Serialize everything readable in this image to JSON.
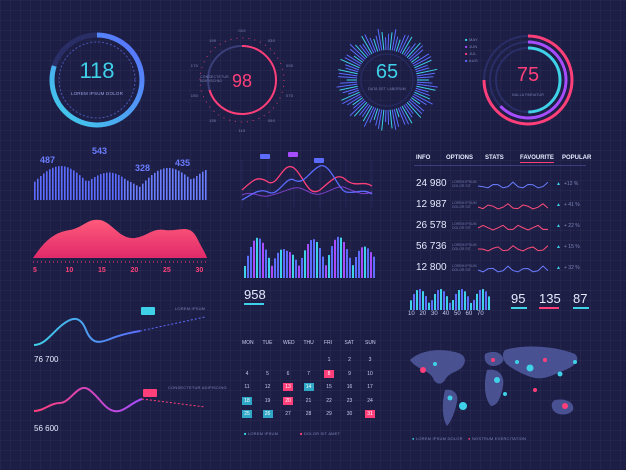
{
  "gauges": [
    {
      "value": "118",
      "caption": "LOREM IPSUM DOLOR",
      "fill": 0.8
    },
    {
      "value": "98",
      "caption": "CONSECTETUR ADIPISCING",
      "fill": 0.7
    },
    {
      "value": "65",
      "caption": "DATA SET LABORUM",
      "fill": 0.65
    },
    {
      "value": "75",
      "caption": "NULLA PARIATUR",
      "fill": 0.75
    }
  ],
  "gauge2_ticks": [
    "010",
    "030",
    "050",
    "070",
    "090",
    "110",
    "130",
    "150",
    "170",
    "190"
  ],
  "gauge4_legend": [
    "MAY",
    "JUN",
    "JUL",
    "AUG"
  ],
  "wave_chart": {
    "labels": [
      "487",
      "543",
      "328",
      "435"
    ]
  },
  "pink_area": {
    "ticks": [
      "5",
      "10",
      "15",
      "20",
      "25",
      "30"
    ]
  },
  "tabs": [
    "INFO",
    "OPTIONS",
    "STATS",
    "FAVOURITE",
    "POPULAR"
  ],
  "list": [
    {
      "value": "24 980",
      "pct": "+12 %",
      "color": "#6a7cff"
    },
    {
      "value": "12 987",
      "pct": "+ 41 %",
      "color": "#ff4d7a"
    },
    {
      "value": "26 578",
      "pct": "+ 22 %",
      "color": "#ff4d7a"
    },
    {
      "value": "56 736",
      "pct": "+ 15 %",
      "color": "#ff4d7a"
    },
    {
      "value": "12 800",
      "pct": "+ 32 %",
      "color": "#6a7cff"
    }
  ],
  "list_sub": "LOREM IPSUM\nDOLOR SIT",
  "bar_small": {
    "ticks": [
      "10",
      "20",
      "30",
      "40",
      "50",
      "60",
      "70"
    ]
  },
  "stats": [
    {
      "value": "95",
      "color": "#3fd1e8"
    },
    {
      "value": "135",
      "color": "#ff4d7a"
    },
    {
      "value": "87",
      "color": "#3fd1e8"
    }
  ],
  "mid_bars": {
    "label": "958"
  },
  "line_blue": {
    "label": "76 700",
    "tag": "LOREM IPSUM"
  },
  "line_red": {
    "label": "56 600",
    "tag": "CONSECTETUR ADIPISCING"
  },
  "calendar": {
    "days": [
      "MON",
      "TUE",
      "WED",
      "THU",
      "FRI",
      "SAT",
      "SUN"
    ],
    "rows": [
      [
        "",
        "",
        "",
        "",
        "1",
        "2",
        "3"
      ],
      [
        "4",
        "5",
        "6",
        "7",
        "8",
        "9",
        "10"
      ],
      [
        "11",
        "12",
        "13",
        "14",
        "15",
        "16",
        "17"
      ],
      [
        "18",
        "19",
        "20",
        "21",
        "22",
        "23",
        "24"
      ],
      [
        "25",
        "26",
        "27",
        "28",
        "29",
        "30",
        "31"
      ]
    ],
    "legend": [
      "LOREM IPSUM",
      "DOLOR SIT AMET"
    ]
  },
  "map_legend": [
    "LOREM IPSUM DOLOR",
    "NOSTRUM EXERCITATION"
  ],
  "colors": {
    "cyan": "#3fd1e8",
    "pink": "#ff3f7a",
    "blue": "#5b6cff",
    "bg": "#1c1e45"
  }
}
